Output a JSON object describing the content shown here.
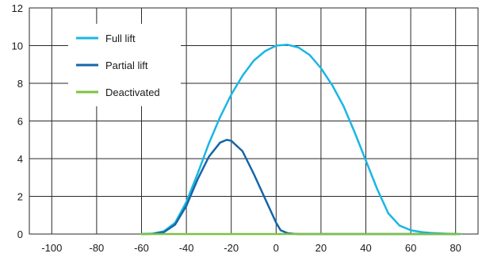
{
  "chart_data": {
    "type": "line",
    "title": "",
    "xlabel": "",
    "ylabel": "",
    "xlim": [
      -110,
      90
    ],
    "ylim": [
      0,
      12
    ],
    "x_ticks": [
      -100,
      -80,
      -60,
      -40,
      -20,
      0,
      20,
      40,
      60,
      80
    ],
    "y_ticks": [
      0,
      2,
      4,
      6,
      8,
      10,
      12
    ],
    "grid": true,
    "legend_position": "top-left",
    "series": [
      {
        "name": "Full lift",
        "color": "#1ab6e3",
        "x": [
          -60,
          -55,
          -50,
          -45,
          -40,
          -35,
          -30,
          -25,
          -20,
          -15,
          -10,
          -5,
          0,
          5,
          10,
          15,
          20,
          25,
          30,
          35,
          40,
          45,
          50,
          55,
          60,
          65,
          70,
          75,
          80,
          82
        ],
        "y": [
          0,
          0.02,
          0.15,
          0.6,
          1.7,
          3.2,
          4.8,
          6.2,
          7.4,
          8.4,
          9.2,
          9.7,
          10.0,
          10.05,
          9.9,
          9.5,
          8.8,
          7.9,
          6.8,
          5.4,
          3.9,
          2.4,
          1.1,
          0.45,
          0.2,
          0.1,
          0.05,
          0.02,
          0,
          0
        ]
      },
      {
        "name": "Partial lift",
        "color": "#1565a8",
        "x": [
          -60,
          -55,
          -50,
          -45,
          -40,
          -35,
          -30,
          -25,
          -22,
          -20,
          -15,
          -10,
          -5,
          0,
          2,
          5,
          8,
          10,
          15,
          20,
          40,
          60,
          80
        ],
        "y": [
          0,
          0.01,
          0.1,
          0.5,
          1.5,
          2.9,
          4.1,
          4.85,
          5.0,
          4.95,
          4.4,
          3.2,
          1.9,
          0.6,
          0.2,
          0.05,
          0.01,
          0,
          0,
          0,
          0,
          0,
          0
        ]
      },
      {
        "name": "Deactivated",
        "color": "#7dc242",
        "x": [
          -60,
          82
        ],
        "y": [
          0,
          0
        ]
      }
    ]
  }
}
